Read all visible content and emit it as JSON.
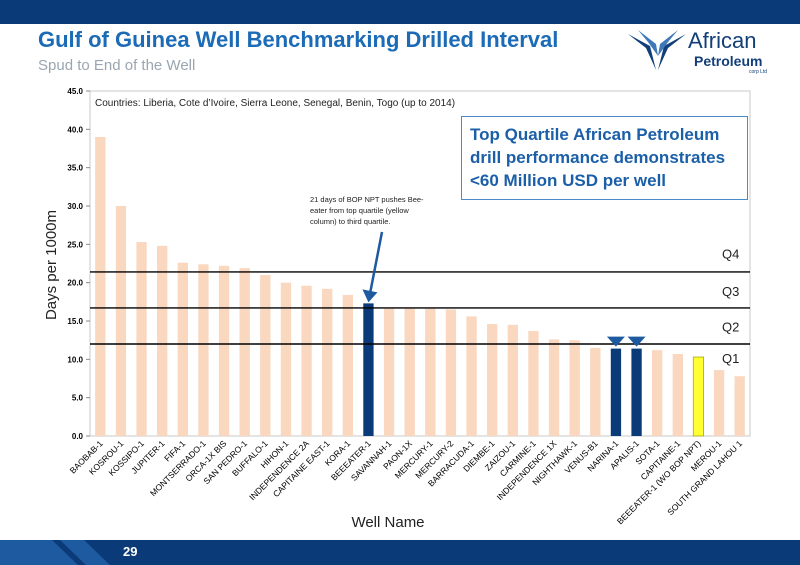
{
  "header": {
    "title": "Gulf of Guinea Well Benchmarking Drilled Interval",
    "subtitle": "Spud to End of the Well"
  },
  "logo": {
    "line1": "African",
    "line2": "Petroleum",
    "line3": "corp Ltd"
  },
  "callout": {
    "lines": [
      "Top Quartile African Petroleum",
      "drill performance demonstrates",
      "<60 Million USD per well"
    ]
  },
  "footer": {
    "page_number": "29"
  },
  "colors": {
    "default_bar": "#fad7bf",
    "highlight_bar": "#0b3a78",
    "yellow_bar": "#ffff33",
    "brand_blue": "#0b3a78",
    "title_blue": "#1b6bb6"
  },
  "chart_data": {
    "type": "bar",
    "note": "Countries: Liberia, Cote d’Ivoire, Sierra Leone, Senegal, Benin, Togo (up to 2014)",
    "xlabel": "Well Name",
    "ylabel": "Days per 1000m",
    "ylim": [
      0,
      45
    ],
    "yticks": [
      "0.0",
      "5.0",
      "10.0",
      "15.0",
      "20.0",
      "25.0",
      "30.0",
      "35.0",
      "40.0",
      "45.0"
    ],
    "grid": false,
    "categories": [
      "BAOBAB-1",
      "KOSROU-1",
      "KOSSIPO-1",
      "JUPITER-1",
      "FIFA-1",
      "MONTSERRADO-1",
      "ORCA-1X BIS",
      "SAN PEDRO-1",
      "BUFFALO-1",
      "HIHON-1",
      "INDEPENDENCE 2A",
      "CAPITAINE EAST-1",
      "KORA-1",
      "BEEEATER-1",
      "SAVANNAH-1",
      "PAON-1X",
      "MERCURY-1",
      "MERCURY-2",
      "BARRACUDA-1",
      "DIEMBE-1",
      "ZAIZOU-1",
      "CARMINE-1",
      "INDEPENDENCE 1X",
      "NIGHTHAWK-1",
      "VENUS-B1",
      "NARINA-1",
      "APALIS-1",
      "SOTA-1",
      "CAPITAINE-1",
      "BEEEATER-1 (WO BOP NPT)",
      "MEROU-1",
      "SOUTH GRAND LAHOU 1"
    ],
    "values": [
      39.0,
      30.0,
      25.3,
      24.8,
      22.6,
      22.4,
      22.2,
      21.9,
      21.0,
      20.0,
      19.6,
      19.2,
      18.4,
      17.3,
      16.6,
      16.6,
      16.6,
      16.5,
      15.6,
      14.6,
      14.5,
      13.7,
      12.6,
      12.5,
      11.5,
      11.4,
      11.4,
      11.2,
      10.7,
      10.3,
      8.6,
      7.8
    ],
    "highlight": {
      "BEEEATER-1": "dark",
      "NARINA-1": "dark",
      "APALIS-1": "dark",
      "BEEEATER-1 (WO BOP NPT)": "yellow"
    },
    "quartile_lines": [
      {
        "label": "Q4",
        "value": 21.4
      },
      {
        "label": "Q3",
        "value": 16.7
      },
      {
        "label": "Q2",
        "value": 12.0
      }
    ],
    "quartile_labels": [
      {
        "label": "Q4",
        "value": 23.8
      },
      {
        "label": "Q3",
        "value": 18.9
      },
      {
        "label": "Q2",
        "value": 14.3
      },
      {
        "label": "Q1",
        "value": 10.2
      }
    ],
    "annotation": {
      "lines": [
        "21 days of BOP NPT pushes Bee-",
        "eater from top quartile (yellow",
        "column) to third quartile."
      ],
      "target": "BEEEATER-1"
    },
    "arrow_targets": [
      "NARINA-1",
      "APALIS-1"
    ]
  }
}
